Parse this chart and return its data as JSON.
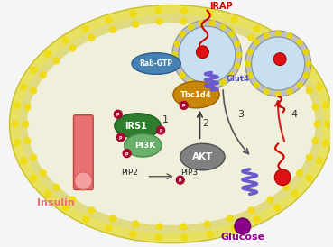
{
  "bg_color": "#FFFDE7",
  "cell_membrane_color": "#F0E68C",
  "cell_inner_color": "#FFFDE7",
  "outer_bg": "#f0f0f0",
  "insulin_color": "#E87070",
  "insulin_ball_color": "#F4A0A0",
  "glucose_color": "#8B008B",
  "irs1_color": "#3A8A3A",
  "pi3k_color": "#6AAF6A",
  "akt_color": "#808080",
  "tbc1d4_color": "#C8860A",
  "rab_color": "#4682B4",
  "glut4_color": "#6A5ACD",
  "vesicle_color": "#B0D0E8",
  "vesicle_border": "#A0A0A0",
  "irap_color": "#CC0000",
  "phospho_color": "#AA0030",
  "arrow_color": "#555555",
  "pip2_text": "PIP2",
  "pip3_text": "PIP3",
  "akt_text": "AKT",
  "irs1_text": "IRS1",
  "pi3k_text": "PI3K",
  "tbc1d4_text": "Tbc1d4",
  "glut4_text": "Glut4",
  "rab_text": "Rab-GTP",
  "irap_text": "IRAP",
  "insulin_text": "Insulin",
  "glucose_text": "Glucose",
  "label1": "1",
  "label2": "2",
  "label3": "3",
  "label4": "4"
}
